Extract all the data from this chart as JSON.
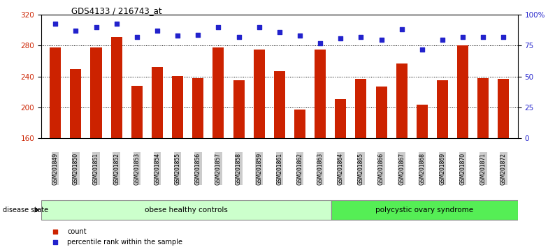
{
  "title": "GDS4133 / 216743_at",
  "categories": [
    "GSM201849",
    "GSM201850",
    "GSM201851",
    "GSM201852",
    "GSM201853",
    "GSM201854",
    "GSM201855",
    "GSM201856",
    "GSM201857",
    "GSM201858",
    "GSM201859",
    "GSM201861",
    "GSM201862",
    "GSM201863",
    "GSM201864",
    "GSM201865",
    "GSM201866",
    "GSM201867",
    "GSM201868",
    "GSM201869",
    "GSM201870",
    "GSM201871",
    "GSM201872"
  ],
  "bar_values": [
    278,
    250,
    278,
    291,
    228,
    252,
    241,
    238,
    278,
    235,
    275,
    247,
    197,
    275,
    211,
    237,
    227,
    257,
    204,
    235,
    280,
    238,
    237
  ],
  "percentile_values": [
    93,
    87,
    90,
    93,
    82,
    87,
    83,
    84,
    90,
    82,
    90,
    86,
    83,
    77,
    81,
    82,
    80,
    88,
    72,
    80,
    82,
    82,
    82
  ],
  "bar_color": "#cc2200",
  "percentile_color": "#2222cc",
  "ylim_left": [
    160,
    320
  ],
  "ylim_right": [
    0,
    100
  ],
  "yticks_left": [
    160,
    200,
    240,
    280,
    320
  ],
  "yticks_right": [
    0,
    25,
    50,
    75,
    100
  ],
  "ytick_labels_right": [
    "0",
    "25",
    "50",
    "75",
    "100%"
  ],
  "group1_label": "obese healthy controls",
  "group2_label": "polycystic ovary syndrome",
  "group1_count": 14,
  "group2_count": 9,
  "group_label_prefix": "disease state",
  "group1_bg": "#ccffcc",
  "group2_bg": "#55ee55",
  "legend_count_label": "count",
  "legend_percentile_label": "percentile rank within the sample",
  "background_color": "#ffffff",
  "ticklabel_bg": "#cccccc"
}
